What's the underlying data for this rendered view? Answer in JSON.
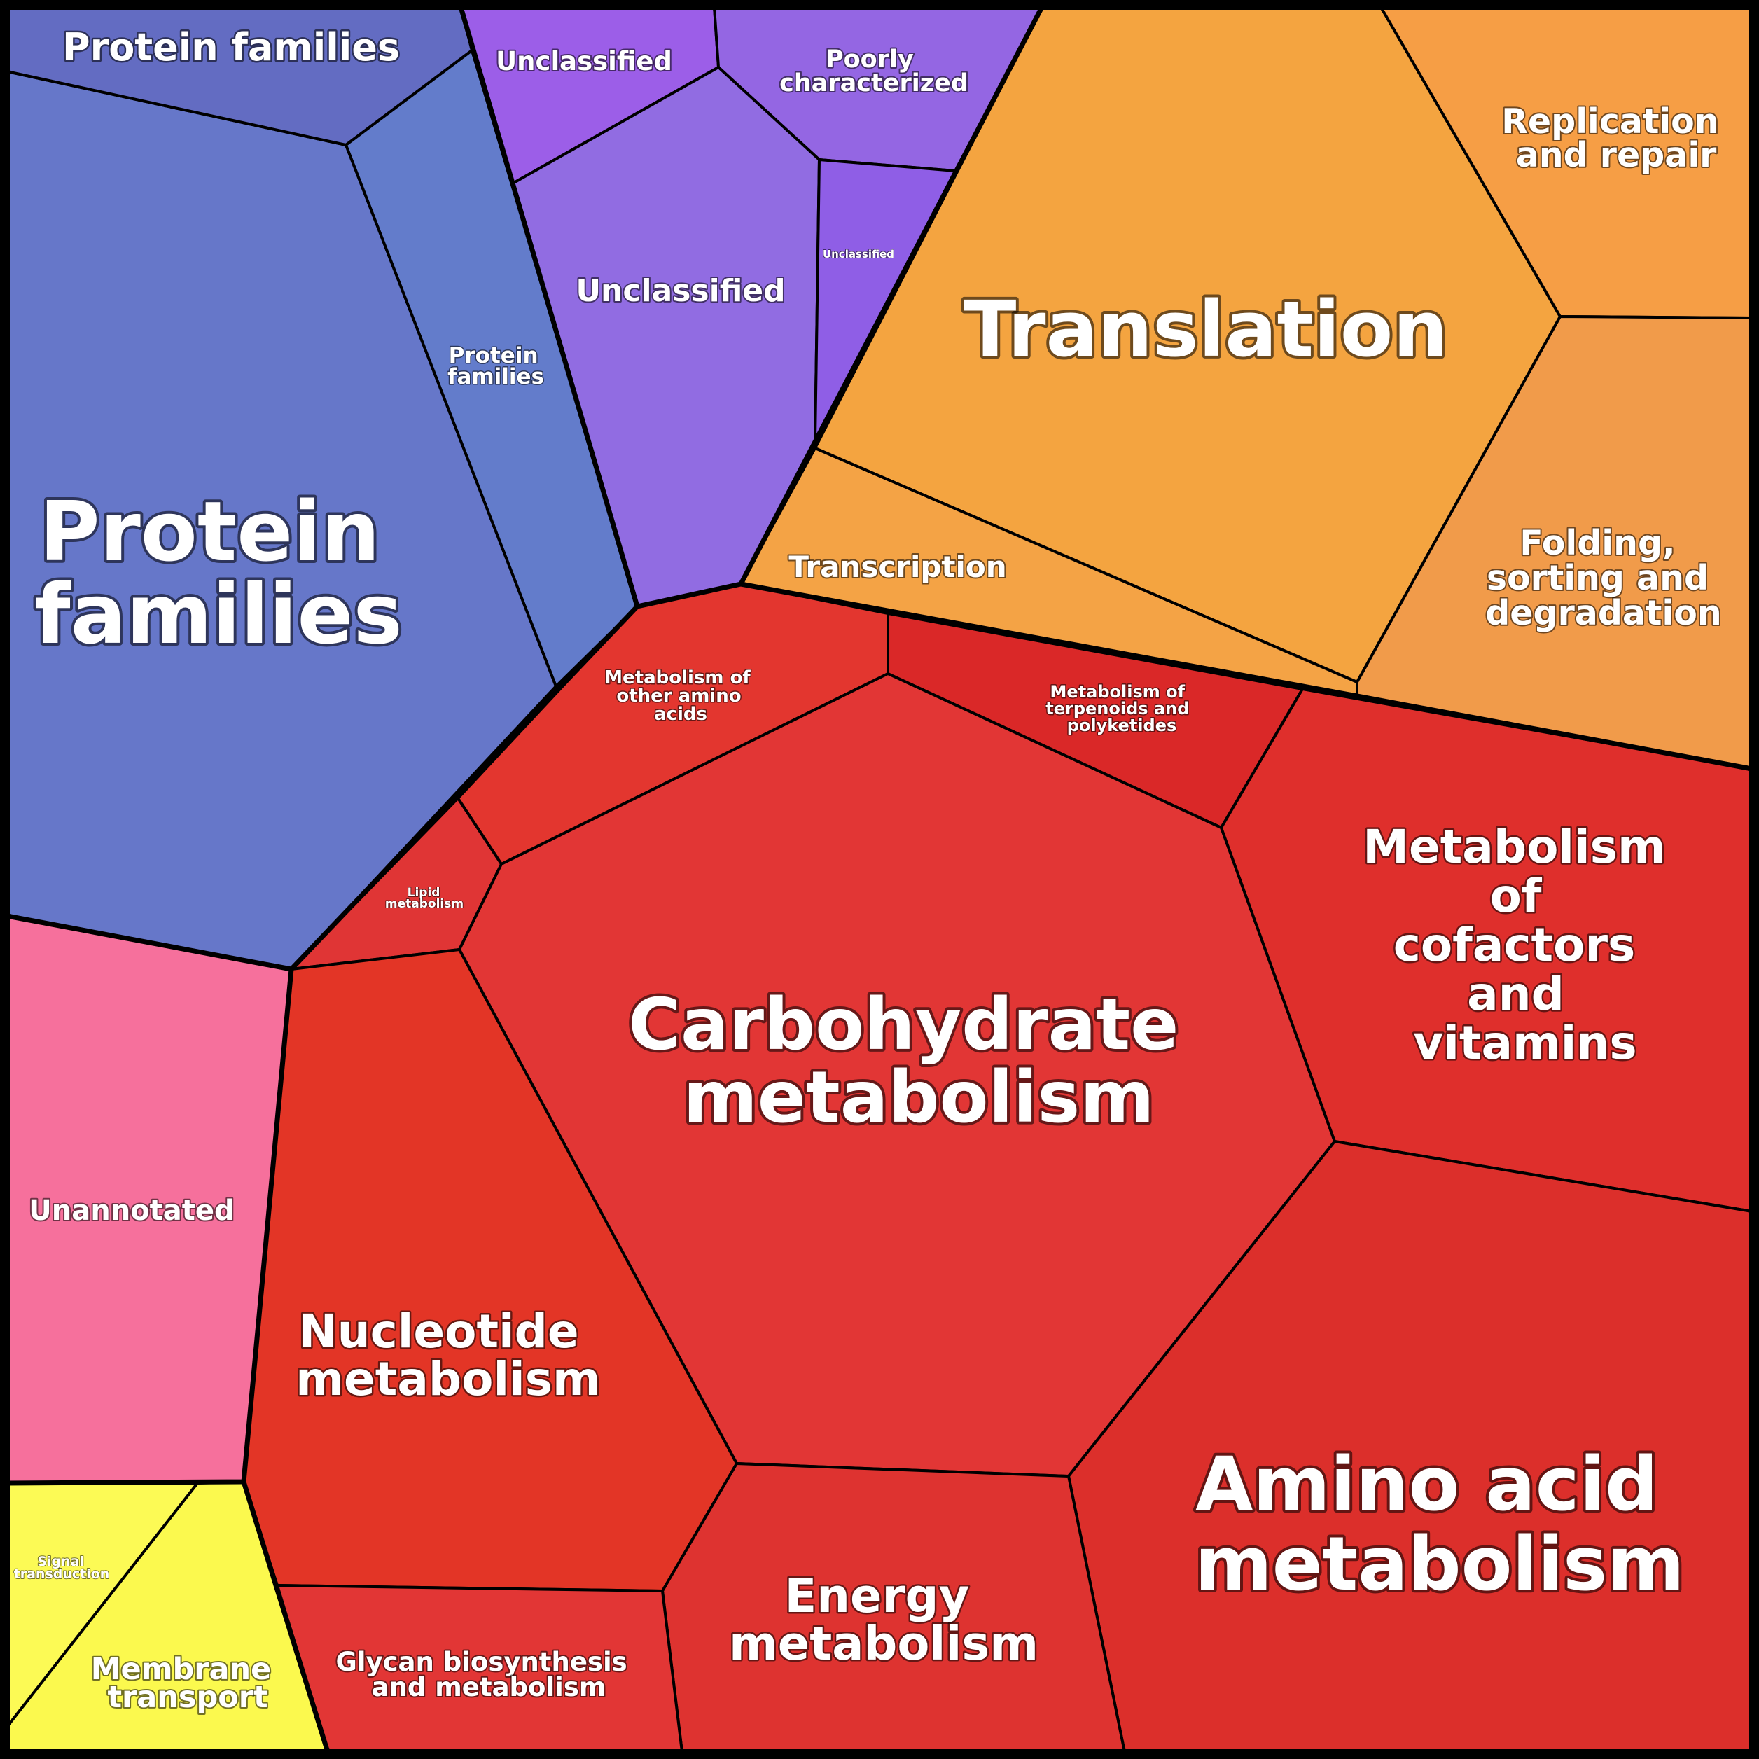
{
  "title": "",
  "colors": {
    "protein_families": "#6778c8",
    "unclassified": "#9168e0",
    "genetic_information_processing": "#f4a340",
    "metabolism": "#e03530",
    "unannotated": "#f6709c",
    "environmental_information_processing": "#fcf94f",
    "border": "#000000",
    "label": "#ffffff"
  },
  "chart_data": {
    "type": "voronoi-treemap",
    "groups": [
      {
        "name": "",
        "color": "#6778c8",
        "cells": [
          {
            "id": "pf-large",
            "label": "Protein families"
          },
          {
            "id": "pf-top",
            "label": "Protein families"
          },
          {
            "id": "pf-mid",
            "label": "Protein families"
          }
        ]
      },
      {
        "name": "",
        "color": "#9168e0",
        "cells": [
          {
            "id": "unc-top",
            "label": "Unclassified"
          },
          {
            "id": "poorly",
            "label": "Poorly characterized"
          },
          {
            "id": "unc-main",
            "label": "Unclassified"
          },
          {
            "id": "unc-small",
            "label": "Unclassified"
          }
        ]
      },
      {
        "name": "",
        "color": "#f4a340",
        "cells": [
          {
            "id": "translation",
            "label": "Translation"
          },
          {
            "id": "replication",
            "label": "Replication and repair"
          },
          {
            "id": "folding",
            "label": "Folding, sorting and degradation"
          },
          {
            "id": "transcription",
            "label": "Transcription"
          }
        ]
      },
      {
        "name": "",
        "color": "#e03530",
        "cells": [
          {
            "id": "carbohydrate",
            "label": "Carbohydrate metabolism"
          },
          {
            "id": "amino-acid",
            "label": "Amino acid metabolism"
          },
          {
            "id": "cofactors",
            "label": "Metabolism of cofactors and vitamins"
          },
          {
            "id": "nucleotide",
            "label": "Nucleotide metabolism"
          },
          {
            "id": "energy",
            "label": "Energy metabolism"
          },
          {
            "id": "glycan",
            "label": "Glycan biosynthesis and metabolism"
          },
          {
            "id": "other-amino",
            "label": "Metabolism of other amino acids"
          },
          {
            "id": "terpenoids",
            "label": "Metabolism of terpenoids and polyketides"
          },
          {
            "id": "lipid",
            "label": "Lipid metabolism"
          }
        ]
      },
      {
        "name": "",
        "color": "#f6709c",
        "cells": [
          {
            "id": "unannotated",
            "label": "Unannotated"
          }
        ]
      },
      {
        "name": "",
        "color": "#fcf94f",
        "cells": [
          {
            "id": "membrane",
            "label": "Membrane transport"
          },
          {
            "id": "signal",
            "label": "Signal transduction"
          }
        ]
      }
    ]
  },
  "cells": {
    "pf_large": {
      "label_1": "Protein",
      "label_2": "families",
      "color": "#6677c9"
    },
    "pf_top": {
      "label_1": "Protein families",
      "color": "#636cc2"
    },
    "pf_mid": {
      "label_1": "Protein",
      "label_2": "families",
      "color": "#637ccb"
    },
    "unc_top": {
      "label_1": "Unclassified",
      "color": "#9c5ee8"
    },
    "poorly": {
      "label_1": "Poorly",
      "label_2": "characterized",
      "color": "#9466e3"
    },
    "unc_main": {
      "label_1": "Unclassified",
      "color": "#916ce2"
    },
    "unc_small": {
      "label_1": "Unclassified",
      "color": "#8f5ee6"
    },
    "translation": {
      "label_1": "Translation",
      "color": "#f4a440"
    },
    "replication": {
      "label_1": "Replication",
      "label_2": "and repair",
      "color": "#f69e45"
    },
    "folding": {
      "label_1": "Folding,",
      "label_2": "sorting and",
      "label_3": "degradation",
      "color": "#f19b4a"
    },
    "transcription": {
      "label_1": "Transcription",
      "color": "#f4a345"
    },
    "carbohydrate": {
      "label_1": "Carbohydrate",
      "label_2": "metabolism",
      "color": "#e23635"
    },
    "amino_acid": {
      "label_1": "Amino acid",
      "label_2": "metabolism",
      "color": "#dc2f2b"
    },
    "cofactors": {
      "label_1": "Metabolism",
      "label_2": "of",
      "label_3": "cofactors",
      "label_4": "and",
      "label_5": "vitamins",
      "color": "#df2f2c"
    },
    "nucleotide": {
      "label_1": "Nucleotide",
      "label_2": "metabolism",
      "color": "#e33526"
    },
    "energy": {
      "label_1": "Energy",
      "label_2": "metabolism",
      "color": "#de3330"
    },
    "glycan": {
      "label_1": "Glycan biosynthesis",
      "label_2": "and metabolism",
      "color": "#e23635"
    },
    "other_amino": {
      "label_1": "Metabolism of",
      "label_2": "other amino",
      "label_3": "acids",
      "color": "#e3362f"
    },
    "terpenoids": {
      "label_1": "Metabolism of",
      "label_2": "terpenoids and",
      "label_3": "polyketides",
      "color": "#da2828"
    },
    "lipid": {
      "label_1": "Lipid",
      "label_2": "metabolism",
      "color": "#e03535"
    },
    "unannotated": {
      "label_1": "Unannotated",
      "color": "#f6709c"
    },
    "membrane": {
      "label_1": "Membrane",
      "label_2": "transport",
      "color": "#fbf94e"
    },
    "signal": {
      "label_1": "Signal",
      "label_2": "transduction",
      "color": "#fcfa55"
    }
  }
}
